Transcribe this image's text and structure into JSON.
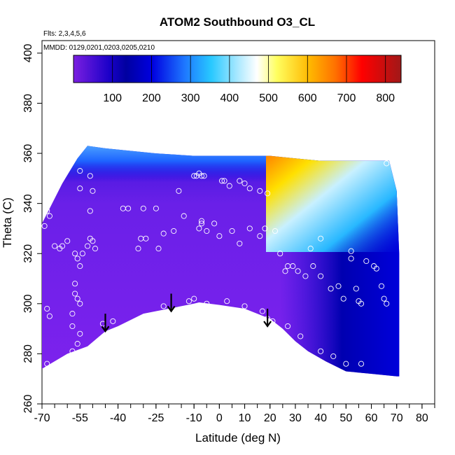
{
  "chart_data": {
    "type": "heatmap",
    "title": "ATOM2 Southbound O3_CL",
    "annotations": [
      "Flts: 2,3,4,5,6",
      "MMDD: 0129,0201,0203,0205,0210"
    ],
    "xlabel": "Latitude (deg N)",
    "ylabel": "Theta (C)",
    "xlim": [
      -70,
      85
    ],
    "ylim": [
      260,
      405
    ],
    "x_ticks": [
      -70,
      -55,
      -40,
      -25,
      -10,
      0,
      10,
      20,
      30,
      40,
      50,
      60,
      70,
      80
    ],
    "x_tick_labels": [
      "-70",
      "-55",
      "-40",
      "-25",
      "-10",
      "0",
      "10",
      "20",
      "30",
      "40",
      "50",
      "60",
      "70",
      "80"
    ],
    "y_ticks": [
      260,
      280,
      300,
      320,
      340,
      360,
      380,
      400
    ],
    "y_tick_labels": [
      "260",
      "280",
      "300",
      "320",
      "340",
      "360",
      "380",
      "400"
    ],
    "colorbar": {
      "range": [
        0,
        840
      ],
      "ticks": [
        100,
        200,
        300,
        400,
        500,
        600,
        700,
        800
      ],
      "tick_labels": [
        "100",
        "200",
        "300",
        "400",
        "500",
        "600",
        "700",
        "800"
      ],
      "colors": [
        "#7b1fe0",
        "#0000a0",
        "#0000e0",
        "#3aa0ff",
        "#28c8ff",
        "#ffffff",
        "#ffff60",
        "#ffa000",
        "#ff0000",
        "#a01818"
      ]
    },
    "region_bottom": [
      [
        -70,
        274
      ],
      [
        -60,
        280
      ],
      [
        -52,
        283
      ],
      [
        -45,
        289
      ],
      [
        -40,
        291
      ],
      [
        -30,
        296
      ],
      [
        -20,
        298
      ],
      [
        -10,
        300
      ],
      [
        -8,
        300.5
      ],
      [
        0,
        299.5
      ],
      [
        10,
        298
      ],
      [
        20,
        294
      ],
      [
        25,
        290
      ],
      [
        30,
        285
      ],
      [
        35,
        281
      ],
      [
        42,
        277
      ],
      [
        50,
        273
      ],
      [
        60,
        272
      ],
      [
        70,
        271
      ]
    ],
    "region_top": [
      [
        -70,
        332
      ],
      [
        -67,
        338
      ],
      [
        -62,
        348
      ],
      [
        -56,
        358
      ],
      [
        -52,
        363
      ],
      [
        -45,
        362
      ],
      [
        -35,
        361
      ],
      [
        -25,
        360
      ],
      [
        -10,
        359
      ],
      [
        0,
        359
      ],
      [
        10,
        359
      ],
      [
        20,
        359
      ],
      [
        30,
        358
      ],
      [
        40,
        357
      ],
      [
        50,
        357
      ],
      [
        60,
        357
      ],
      [
        67,
        357
      ]
    ],
    "region_right": [
      [
        67,
        357
      ],
      [
        70,
        345
      ],
      [
        71,
        320
      ],
      [
        71,
        295
      ],
      [
        71,
        271
      ]
    ],
    "observations": [
      [
        -69,
        331
      ],
      [
        -68,
        337
      ],
      [
        -67,
        335
      ],
      [
        -68,
        298
      ],
      [
        -67,
        295
      ],
      [
        -68,
        276
      ],
      [
        -65,
        323
      ],
      [
        -63,
        322
      ],
      [
        -62,
        323
      ],
      [
        -60,
        325
      ],
      [
        -55,
        353
      ],
      [
        -55,
        346
      ],
      [
        -51,
        351
      ],
      [
        -51,
        337
      ],
      [
        -50,
        345
      ],
      [
        -57,
        320
      ],
      [
        -56,
        318
      ],
      [
        -55,
        315
      ],
      [
        -54,
        320
      ],
      [
        -52,
        323
      ],
      [
        -51,
        326
      ],
      [
        -50,
        325
      ],
      [
        -49,
        322
      ],
      [
        -57,
        308
      ],
      [
        -57,
        304
      ],
      [
        -56,
        302
      ],
      [
        -55,
        300
      ],
      [
        -58,
        296
      ],
      [
        -58,
        291
      ],
      [
        -55,
        288
      ],
      [
        -56,
        284
      ],
      [
        -58,
        281
      ],
      [
        -46,
        292
      ],
      [
        -42,
        293
      ],
      [
        -38,
        338
      ],
      [
        -36,
        338
      ],
      [
        -31,
        326
      ],
      [
        -32,
        322
      ],
      [
        -30,
        338
      ],
      [
        -29,
        326
      ],
      [
        -25,
        338
      ],
      [
        -24,
        322
      ],
      [
        -22,
        328
      ],
      [
        -18,
        329
      ],
      [
        -16,
        345
      ],
      [
        -14,
        335
      ],
      [
        -22,
        299
      ],
      [
        -10,
        351
      ],
      [
        -9,
        351
      ],
      [
        -8,
        352
      ],
      [
        -7,
        351
      ],
      [
        -6,
        351
      ],
      [
        -7,
        333
      ],
      [
        -7,
        332
      ],
      [
        -8,
        330
      ],
      [
        -5,
        329
      ],
      [
        -12,
        301
      ],
      [
        -10,
        302
      ],
      [
        -5,
        300
      ],
      [
        -2,
        332
      ],
      [
        1,
        349
      ],
      [
        2,
        349
      ],
      [
        4,
        347
      ],
      [
        8,
        349
      ],
      [
        10,
        348
      ],
      [
        12,
        346
      ],
      [
        0,
        327
      ],
      [
        5,
        329
      ],
      [
        8,
        324
      ],
      [
        12,
        330
      ],
      [
        16,
        327
      ],
      [
        18,
        330
      ],
      [
        22,
        329
      ],
      [
        3,
        301
      ],
      [
        10,
        299
      ],
      [
        17,
        297
      ],
      [
        19,
        294
      ],
      [
        21,
        293
      ],
      [
        27,
        291
      ],
      [
        16,
        345
      ],
      [
        19,
        344
      ],
      [
        24,
        320
      ],
      [
        26,
        313
      ],
      [
        27,
        315
      ],
      [
        29,
        315
      ],
      [
        31,
        313
      ],
      [
        34,
        311
      ],
      [
        36,
        322
      ],
      [
        37,
        315
      ],
      [
        40,
        311
      ],
      [
        44,
        306
      ],
      [
        47,
        307
      ],
      [
        49,
        302
      ],
      [
        52,
        321
      ],
      [
        52,
        318
      ],
      [
        54,
        306
      ],
      [
        55,
        301
      ],
      [
        56,
        300
      ],
      [
        40,
        326
      ],
      [
        58,
        317
      ],
      [
        61,
        315
      ],
      [
        62,
        314
      ],
      [
        64,
        307
      ],
      [
        65,
        302
      ],
      [
        66,
        300
      ],
      [
        66,
        356
      ],
      [
        32,
        287
      ],
      [
        40,
        281
      ],
      [
        45,
        279
      ],
      [
        50,
        276
      ],
      [
        56,
        276
      ]
    ],
    "arrows": [
      [
        -45,
        296
      ],
      [
        -19,
        304
      ],
      [
        19,
        298
      ]
    ]
  }
}
